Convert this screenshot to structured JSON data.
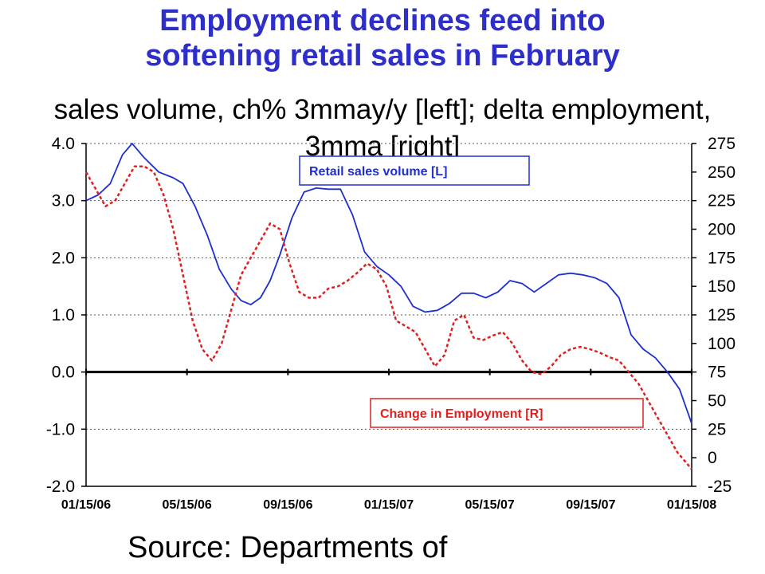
{
  "title_lines": [
    "Employment declines feed into",
    "softening retail sales in February"
  ],
  "subtitle": "sales volume, ch% 3mmay/y [left]; delta employment, 3mma [right]",
  "source": "Source: Departments of",
  "colors": {
    "title": "#2e2ec8",
    "retail": "#1f2fd0",
    "employment": "#e02020",
    "grid": "#555555"
  },
  "chart_data": {
    "type": "line",
    "x_tick_labels": [
      "01/15/06",
      "05/15/06",
      "09/15/06",
      "01/15/07",
      "05/15/07",
      "09/15/07",
      "01/15/08"
    ],
    "y_left": {
      "ticks": [
        "4.0",
        "3.0",
        "2.0",
        "1.0",
        "0.0",
        "-1.0",
        "-2.0"
      ],
      "range": [
        -2.0,
        4.0
      ]
    },
    "y_right": {
      "ticks": [
        "275",
        "250",
        "225",
        "200",
        "175",
        "150",
        "125",
        "100",
        "75",
        "50",
        "25",
        "0",
        "-25"
      ],
      "range": [
        -25,
        275
      ]
    },
    "grid": "horizontal dashed",
    "x_range": [
      0,
      25.0
    ],
    "series": [
      {
        "name": "Retail sales volume [L]",
        "axis": "left",
        "style": "solid",
        "color": "#1f2fd0",
        "x": [
          0,
          0.5,
          1.0,
          1.5,
          1.9,
          2.4,
          3.0,
          3.6,
          4.0,
          4.5,
          5.0,
          5.5,
          6.0,
          6.4,
          6.8,
          7.2,
          7.6,
          8.0,
          8.5,
          9.0,
          9.5,
          10.0,
          10.5,
          11.0,
          11.5,
          12.0,
          12.5,
          13.0,
          13.5,
          14.0,
          14.5,
          15.0,
          15.5,
          16.0,
          16.5,
          17.0,
          17.5,
          18.0,
          18.5,
          19.0,
          19.5,
          20.0,
          20.5,
          21.0,
          21.5,
          22.0,
          22.5,
          23.0,
          23.5,
          24.0,
          24.5,
          25.0
        ],
        "values": [
          3.0,
          3.1,
          3.3,
          3.8,
          4.0,
          3.75,
          3.5,
          3.4,
          3.3,
          2.9,
          2.4,
          1.8,
          1.45,
          1.25,
          1.18,
          1.3,
          1.6,
          2.05,
          2.7,
          3.15,
          3.22,
          3.2,
          3.2,
          2.75,
          2.1,
          1.85,
          1.7,
          1.5,
          1.15,
          1.05,
          1.08,
          1.2,
          1.38,
          1.38,
          1.3,
          1.4,
          1.6,
          1.55,
          1.4,
          1.55,
          1.7,
          1.73,
          1.7,
          1.65,
          1.55,
          1.3,
          0.65,
          0.4,
          0.25,
          0.0,
          -0.3,
          -0.9
        ]
      },
      {
        "name": "Change in Employment [R]",
        "axis": "right",
        "style": "dashed",
        "color": "#e02020",
        "x": [
          0,
          0.4,
          0.8,
          1.2,
          1.6,
          2.0,
          2.4,
          2.8,
          3.2,
          3.6,
          4.0,
          4.4,
          4.8,
          5.2,
          5.6,
          6.0,
          6.4,
          6.8,
          7.2,
          7.6,
          8.0,
          8.4,
          8.8,
          9.2,
          9.6,
          10.0,
          10.4,
          10.8,
          11.2,
          11.6,
          12.0,
          12.4,
          12.8,
          13.2,
          13.6,
          14.0,
          14.4,
          14.8,
          15.2,
          15.6,
          16.0,
          16.4,
          16.8,
          17.2,
          17.6,
          18.0,
          18.4,
          18.8,
          19.2,
          19.6,
          20.0,
          20.4,
          20.8,
          21.2,
          21.6,
          22.0,
          22.4,
          22.8,
          23.2,
          23.6,
          24.0,
          24.4,
          25.0
        ],
        "values": [
          250,
          235,
          220,
          225,
          240,
          255,
          255,
          250,
          230,
          200,
          160,
          120,
          95,
          85,
          100,
          130,
          160,
          175,
          190,
          205,
          200,
          170,
          145,
          140,
          140,
          148,
          150,
          155,
          162,
          170,
          165,
          150,
          120,
          115,
          110,
          95,
          80,
          90,
          120,
          125,
          105,
          103,
          107,
          110,
          100,
          85,
          75,
          73,
          80,
          90,
          95,
          97,
          95,
          92,
          88,
          85,
          75,
          65,
          50,
          35,
          20,
          5,
          -10
        ]
      }
    ],
    "legend": [
      {
        "label": "Retail sales volume [L]",
        "color": "#1f2fd0",
        "placement": "upper-middle"
      },
      {
        "label": "Change in Employment [R]",
        "color": "#e02020",
        "placement": "lower-right"
      }
    ]
  }
}
